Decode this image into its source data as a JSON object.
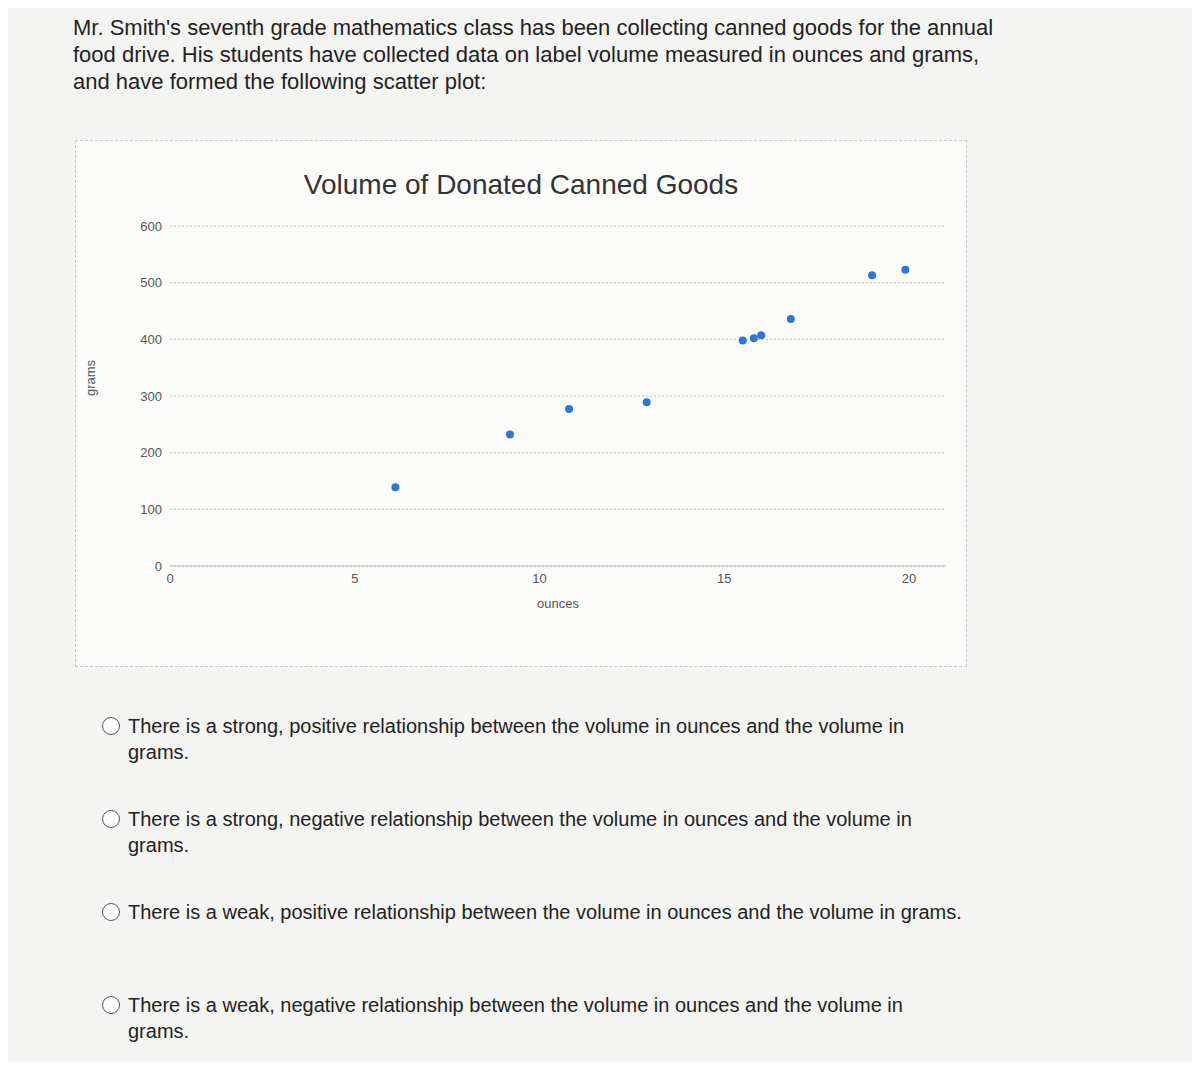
{
  "question": "Mr. Smith's seventh grade mathematics class has been collecting canned goods for the annual food drive. His students have collected data on label volume measured in ounces and grams, and have formed the following scatter plot:",
  "options": [
    "There is a strong, positive relationship between the volume in ounces and the volume in grams.",
    "There is a strong, negative relationship between the volume in ounces and the volume in grams.",
    "There is a weak, positive relationship between the volume in ounces and the volume in grams.",
    "There is a weak, negative relationship between the volume in ounces and the volume in grams."
  ],
  "chart_data": {
    "type": "scatter",
    "title": "Volume of Donated Canned Goods",
    "x_label": "ounces",
    "y_label": "grams",
    "x": [
      6.1,
      9.2,
      10.8,
      12.9,
      15.5,
      15.8,
      16,
      16.8,
      19,
      19.9
    ],
    "values": [
      139,
      232,
      277,
      289,
      398,
      402,
      407,
      436,
      513,
      523
    ],
    "color": "#2f76d2",
    "xlim": [
      0,
      21
    ],
    "xticks": [
      0,
      5,
      10,
      15,
      20
    ],
    "ylim": [
      0,
      600
    ],
    "yticks": [
      0,
      100,
      200,
      300,
      400,
      500,
      600
    ],
    "grid": true
  }
}
